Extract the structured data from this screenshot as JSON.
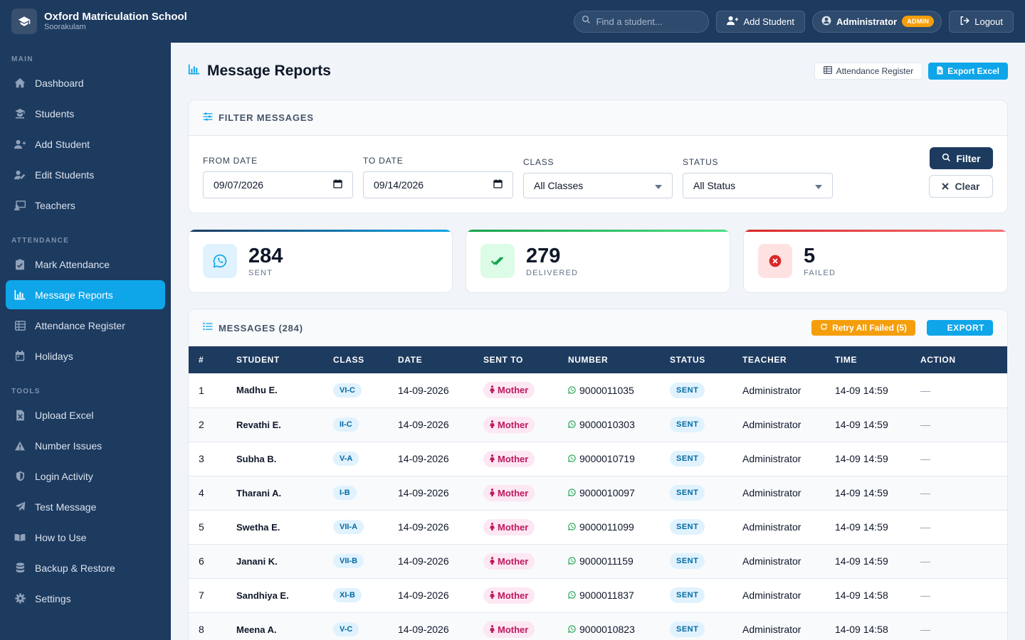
{
  "app": {
    "school_name": "Oxford Matriculation School",
    "school_location": "Soorakulam"
  },
  "topbar": {
    "search_placeholder": "Find a student...",
    "add_student_label": "Add Student",
    "user_name": "Administrator",
    "user_role_badge": "ADMIN",
    "logout_label": "Logout"
  },
  "sidebar": {
    "sections": [
      {
        "title": "MAIN",
        "items": [
          "Dashboard",
          "Students",
          "Add Student",
          "Edit Students",
          "Teachers"
        ]
      },
      {
        "title": "ATTENDANCE",
        "items": [
          "Mark Attendance",
          "Message Reports",
          "Attendance Register",
          "Holidays"
        ]
      },
      {
        "title": "TOOLS",
        "items": [
          "Upload Excel",
          "Number Issues",
          "Login Activity",
          "Test Message",
          "How to Use",
          "Backup & Restore",
          "Settings"
        ]
      }
    ],
    "active_item": "Message Reports"
  },
  "page": {
    "title": "Message Reports",
    "attendance_register_label": "Attendance Register",
    "export_excel_label": "Export Excel"
  },
  "filters": {
    "title": "FILTER MESSAGES",
    "from_label": "FROM DATE",
    "from_value": "09/07/2026",
    "to_label": "TO DATE",
    "to_value": "09/14/2026",
    "class_label": "CLASS",
    "class_value": "All Classes",
    "status_label": "STATUS",
    "status_value": "All Status",
    "filter_button": "Filter",
    "clear_button": "Clear"
  },
  "stats": {
    "sent": {
      "value": "284",
      "label": "SENT",
      "color": "#0ea5e9"
    },
    "delivered": {
      "value": "279",
      "label": "DELIVERED",
      "color": "#22c55e"
    },
    "failed": {
      "value": "5",
      "label": "FAILED",
      "color": "#ef4444"
    }
  },
  "messages": {
    "title": "MESSAGES (284)",
    "retry_label": "Retry All Failed (5)",
    "export_label": "EXPORT",
    "columns": [
      "#",
      "STUDENT",
      "CLASS",
      "DATE",
      "SENT TO",
      "NUMBER",
      "STATUS",
      "TEACHER",
      "TIME",
      "ACTION"
    ],
    "rows": [
      {
        "n": "1",
        "student": "Madhu E.",
        "class": "VI-C",
        "date": "14-09-2026",
        "sent_to": "Mother",
        "number": "9000011035",
        "status": "SENT",
        "teacher": "Administrator",
        "time": "14-09 14:59",
        "action": "—"
      },
      {
        "n": "2",
        "student": "Revathi E.",
        "class": "II-C",
        "date": "14-09-2026",
        "sent_to": "Mother",
        "number": "9000010303",
        "status": "SENT",
        "teacher": "Administrator",
        "time": "14-09 14:59",
        "action": "—"
      },
      {
        "n": "3",
        "student": "Subha B.",
        "class": "V-A",
        "date": "14-09-2026",
        "sent_to": "Mother",
        "number": "9000010719",
        "status": "SENT",
        "teacher": "Administrator",
        "time": "14-09 14:59",
        "action": "—"
      },
      {
        "n": "4",
        "student": "Tharani A.",
        "class": "I-B",
        "date": "14-09-2026",
        "sent_to": "Mother",
        "number": "9000010097",
        "status": "SENT",
        "teacher": "Administrator",
        "time": "14-09 14:59",
        "action": "—"
      },
      {
        "n": "5",
        "student": "Swetha E.",
        "class": "VII-A",
        "date": "14-09-2026",
        "sent_to": "Mother",
        "number": "9000011099",
        "status": "SENT",
        "teacher": "Administrator",
        "time": "14-09 14:59",
        "action": "—"
      },
      {
        "n": "6",
        "student": "Janani K.",
        "class": "VII-B",
        "date": "14-09-2026",
        "sent_to": "Mother",
        "number": "9000011159",
        "status": "SENT",
        "teacher": "Administrator",
        "time": "14-09 14:59",
        "action": "—"
      },
      {
        "n": "7",
        "student": "Sandhiya E.",
        "class": "XI-B",
        "date": "14-09-2026",
        "sent_to": "Mother",
        "number": "9000011837",
        "status": "SENT",
        "teacher": "Administrator",
        "time": "14-09 14:58",
        "action": "—"
      },
      {
        "n": "8",
        "student": "Meena A.",
        "class": "V-C",
        "date": "14-09-2026",
        "sent_to": "Mother",
        "number": "9000010823",
        "status": "SENT",
        "teacher": "Administrator",
        "time": "14-09 14:58",
        "action": "—"
      }
    ]
  }
}
